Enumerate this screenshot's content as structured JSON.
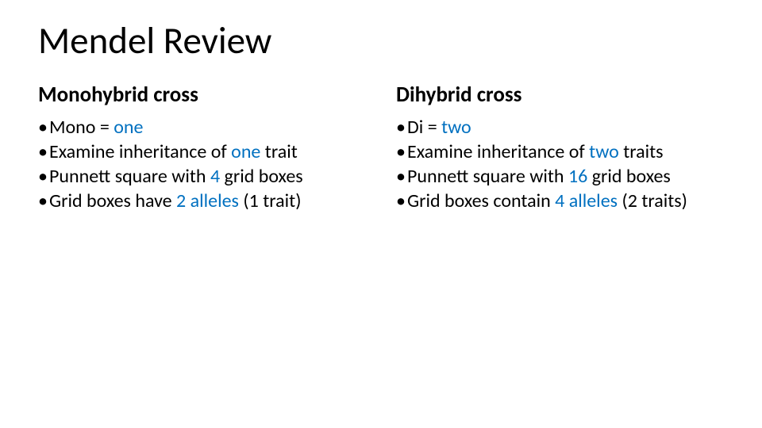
{
  "title": "Mendel Review",
  "colors": {
    "text": "#000000",
    "accent_blue": "#0070c0",
    "background": "#ffffff"
  },
  "typography": {
    "title_fontsize_pt": 40,
    "heading_fontsize_pt": 24,
    "body_fontsize_pt": 21,
    "font_family": "Calibri"
  },
  "left": {
    "heading": "Monohybrid cross",
    "items": [
      {
        "bullet": "• ",
        "pre": "Mono = ",
        "em": "one",
        "post": ""
      },
      {
        "bullet": "• ",
        "pre": "Examine inheritance of ",
        "em": "one",
        "post": " trait"
      },
      {
        "bullet": "• ",
        "pre": "Punnett square with ",
        "em": "4",
        "post": " grid boxes"
      },
      {
        "bullet": "• ",
        "pre": "Grid boxes have ",
        "em": "2 alleles",
        "post": " (1 trait)"
      }
    ]
  },
  "right": {
    "heading": "Dihybrid cross",
    "items": [
      {
        "bullet": "• ",
        "pre": "Di = ",
        "em": "two",
        "post": ""
      },
      {
        "bullet": "• ",
        "pre": "Examine inheritance of ",
        "em": "two",
        "post": " traits"
      },
      {
        "bullet": "• ",
        "pre": "Punnett square with ",
        "em": "16",
        "post": " grid boxes"
      },
      {
        "bullet": "• ",
        "pre": "Grid boxes contain ",
        "em": "4 alleles",
        "post": " (2 traits)"
      }
    ]
  }
}
